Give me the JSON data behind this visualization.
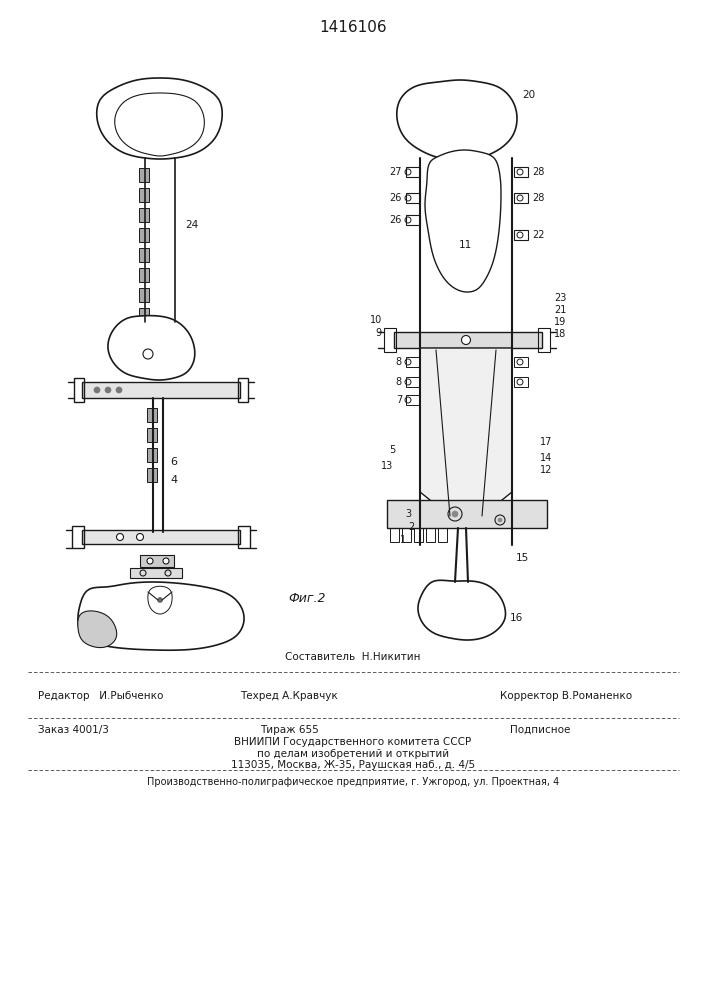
{
  "title": "1416106",
  "fig_label": "Фиг.2",
  "line_color": "#1a1a1a",
  "footer": {
    "sestavitel": "Составитель  Н.Никитин",
    "redaktor": "Редактор   И.Рыбченко",
    "tehred": "Техред А.Кравчук",
    "korrektor": "Корректор В.Романенко",
    "zakaz": "Заказ 4001/3",
    "tirazh": "Тираж 655",
    "podpisnoe": "Подписное",
    "vniipи": "ВНИИПИ Государственного комитета СССР",
    "po_delam": "по делам изобретений и открытий",
    "address": "113035, Москва, Ж-35, Раушская наб., д. 4/5",
    "production": "Производственно-полиграфическое предприятие, г. Ужгород, ул. Проектная, 4"
  }
}
